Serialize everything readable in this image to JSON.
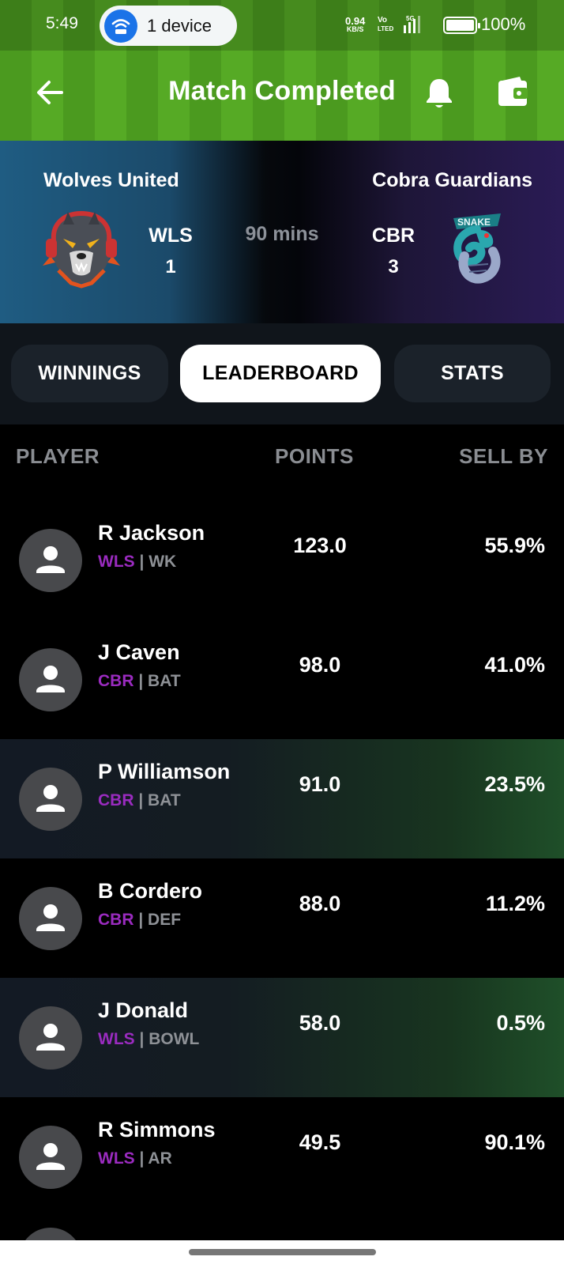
{
  "status_bar": {
    "time": "5:49",
    "device_pill": "1 device",
    "net_speed_value": "0.94",
    "net_speed_unit": "KB/S",
    "volte_line1": "Vo",
    "volte_line2": "LTED",
    "signal_label": "5G",
    "battery": "100%"
  },
  "header": {
    "title": "Match Completed",
    "icons": [
      "back-arrow-icon",
      "bell-icon",
      "wallet-icon"
    ]
  },
  "match": {
    "home": {
      "name": "Wolves United",
      "code": "WLS",
      "score": "1",
      "logo": "wolf-logo"
    },
    "away": {
      "name": "Cobra Guardians",
      "code": "CBR",
      "score": "3",
      "logo": "snake-logo",
      "logo_text": "SNAKE"
    },
    "duration": "90 mins"
  },
  "tabs": [
    {
      "label": "WINNINGS",
      "active": false
    },
    {
      "label": "LEADERBOARD",
      "active": true
    },
    {
      "label": "STATS",
      "active": false
    }
  ],
  "leaderboard": {
    "columns": [
      "PLAYER",
      "POINTS",
      "SELL BY"
    ],
    "rows": [
      {
        "name": "R Jackson",
        "team": "WLS",
        "role": "WK",
        "points": "123.0",
        "sell_by": "55.9%",
        "highlight": false
      },
      {
        "name": "J Caven",
        "team": "CBR",
        "role": "BAT",
        "points": "98.0",
        "sell_by": "41.0%",
        "highlight": false
      },
      {
        "name": "P Williamson",
        "team": "CBR",
        "role": "BAT",
        "points": "91.0",
        "sell_by": "23.5%",
        "highlight": true
      },
      {
        "name": "B Cordero",
        "team": "CBR",
        "role": "DEF",
        "points": "88.0",
        "sell_by": "11.2%",
        "highlight": false
      },
      {
        "name": "J Donald",
        "team": "WLS",
        "role": "BOWL",
        "points": "58.0",
        "sell_by": "0.5%",
        "highlight": true
      },
      {
        "name": "R Simmons",
        "team": "WLS",
        "role": "AR",
        "points": "49.5",
        "sell_by": "90.1%",
        "highlight": false
      }
    ]
  },
  "colors": {
    "header_green": "#4b9a1f",
    "team_tag_purple": "#9a2bbf",
    "active_tab_bg": "#ffffff",
    "highlight_green": "#1f4f29"
  }
}
